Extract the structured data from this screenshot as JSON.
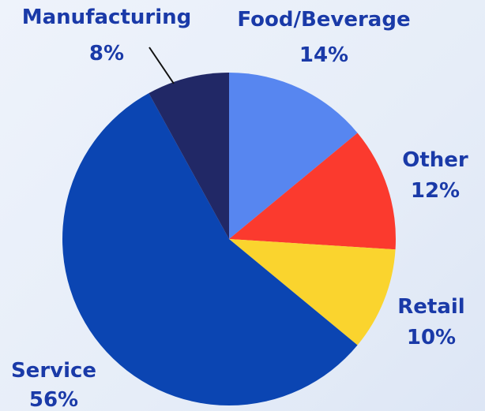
{
  "chart_data": {
    "type": "pie",
    "title": "",
    "start_angle_deg": 0,
    "direction": "clockwise",
    "slices": [
      {
        "name": "Food/Beverage",
        "value": 14,
        "label": "14%",
        "color": "#5786f0"
      },
      {
        "name": "Other",
        "value": 12,
        "label": "12%",
        "color": "#fb3a2e"
      },
      {
        "name": "Retail",
        "value": 10,
        "label": "10%",
        "color": "#fad42e"
      },
      {
        "name": "Service",
        "value": 56,
        "label": "56%",
        "color": "#0b45b2"
      },
      {
        "name": "Manufacturing",
        "value": 8,
        "label": "8%",
        "color": "#212866"
      }
    ],
    "label_color": "#1a3aa8"
  }
}
